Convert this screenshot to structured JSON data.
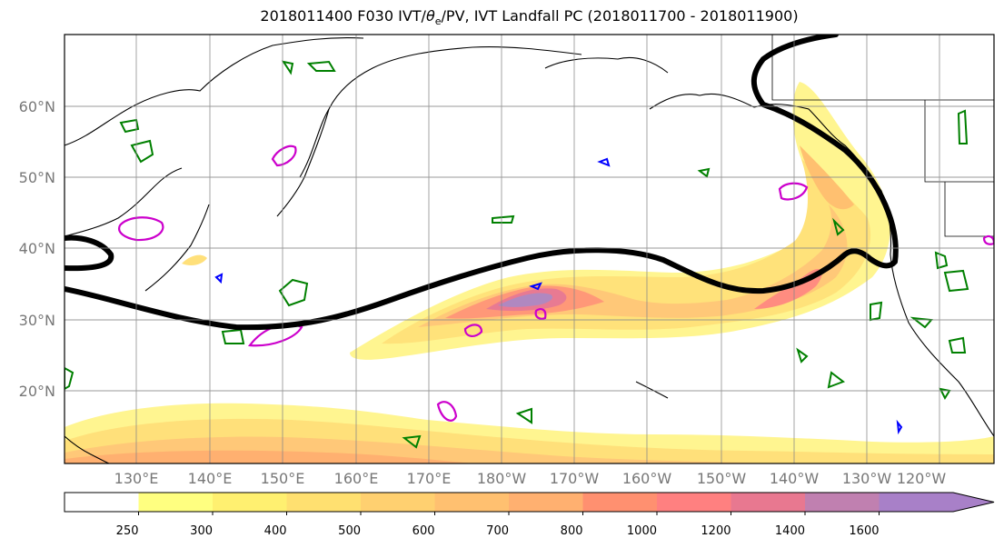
{
  "title": {
    "prefix": "2018011400 F030 IVT/",
    "theta": "θ",
    "sub": "e",
    "suffix": "/PV, IVT Landfall PC (2018011700 - 2018011900)"
  },
  "map": {
    "lat_labels": [
      "60°N",
      "50°N",
      "40°N",
      "30°N",
      "20°N"
    ],
    "lon_labels": [
      "130°E",
      "140°E",
      "150°E",
      "160°E",
      "170°E",
      "180°W",
      "170°W",
      "160°W",
      "150°W",
      "140°W",
      "130°W",
      "120°W"
    ]
  },
  "colorbar": {
    "levels": [
      "250",
      "300",
      "400",
      "500",
      "600",
      "700",
      "800",
      "1000",
      "1200",
      "1400",
      "1600"
    ],
    "colors": [
      "#ffffff",
      "#ffff80",
      "#fff070",
      "#ffe070",
      "#ffd070",
      "#ffc070",
      "#ffb070",
      "#ff9070",
      "#ff8080",
      "#e87890",
      "#c080b0",
      "#a880c8"
    ],
    "extend_color": "#a880c8"
  },
  "colors": {
    "pc_contour": "#000000",
    "theta_e": "#008000",
    "pv_high": "#cc00cc",
    "pv_low": "#0000ff"
  }
}
